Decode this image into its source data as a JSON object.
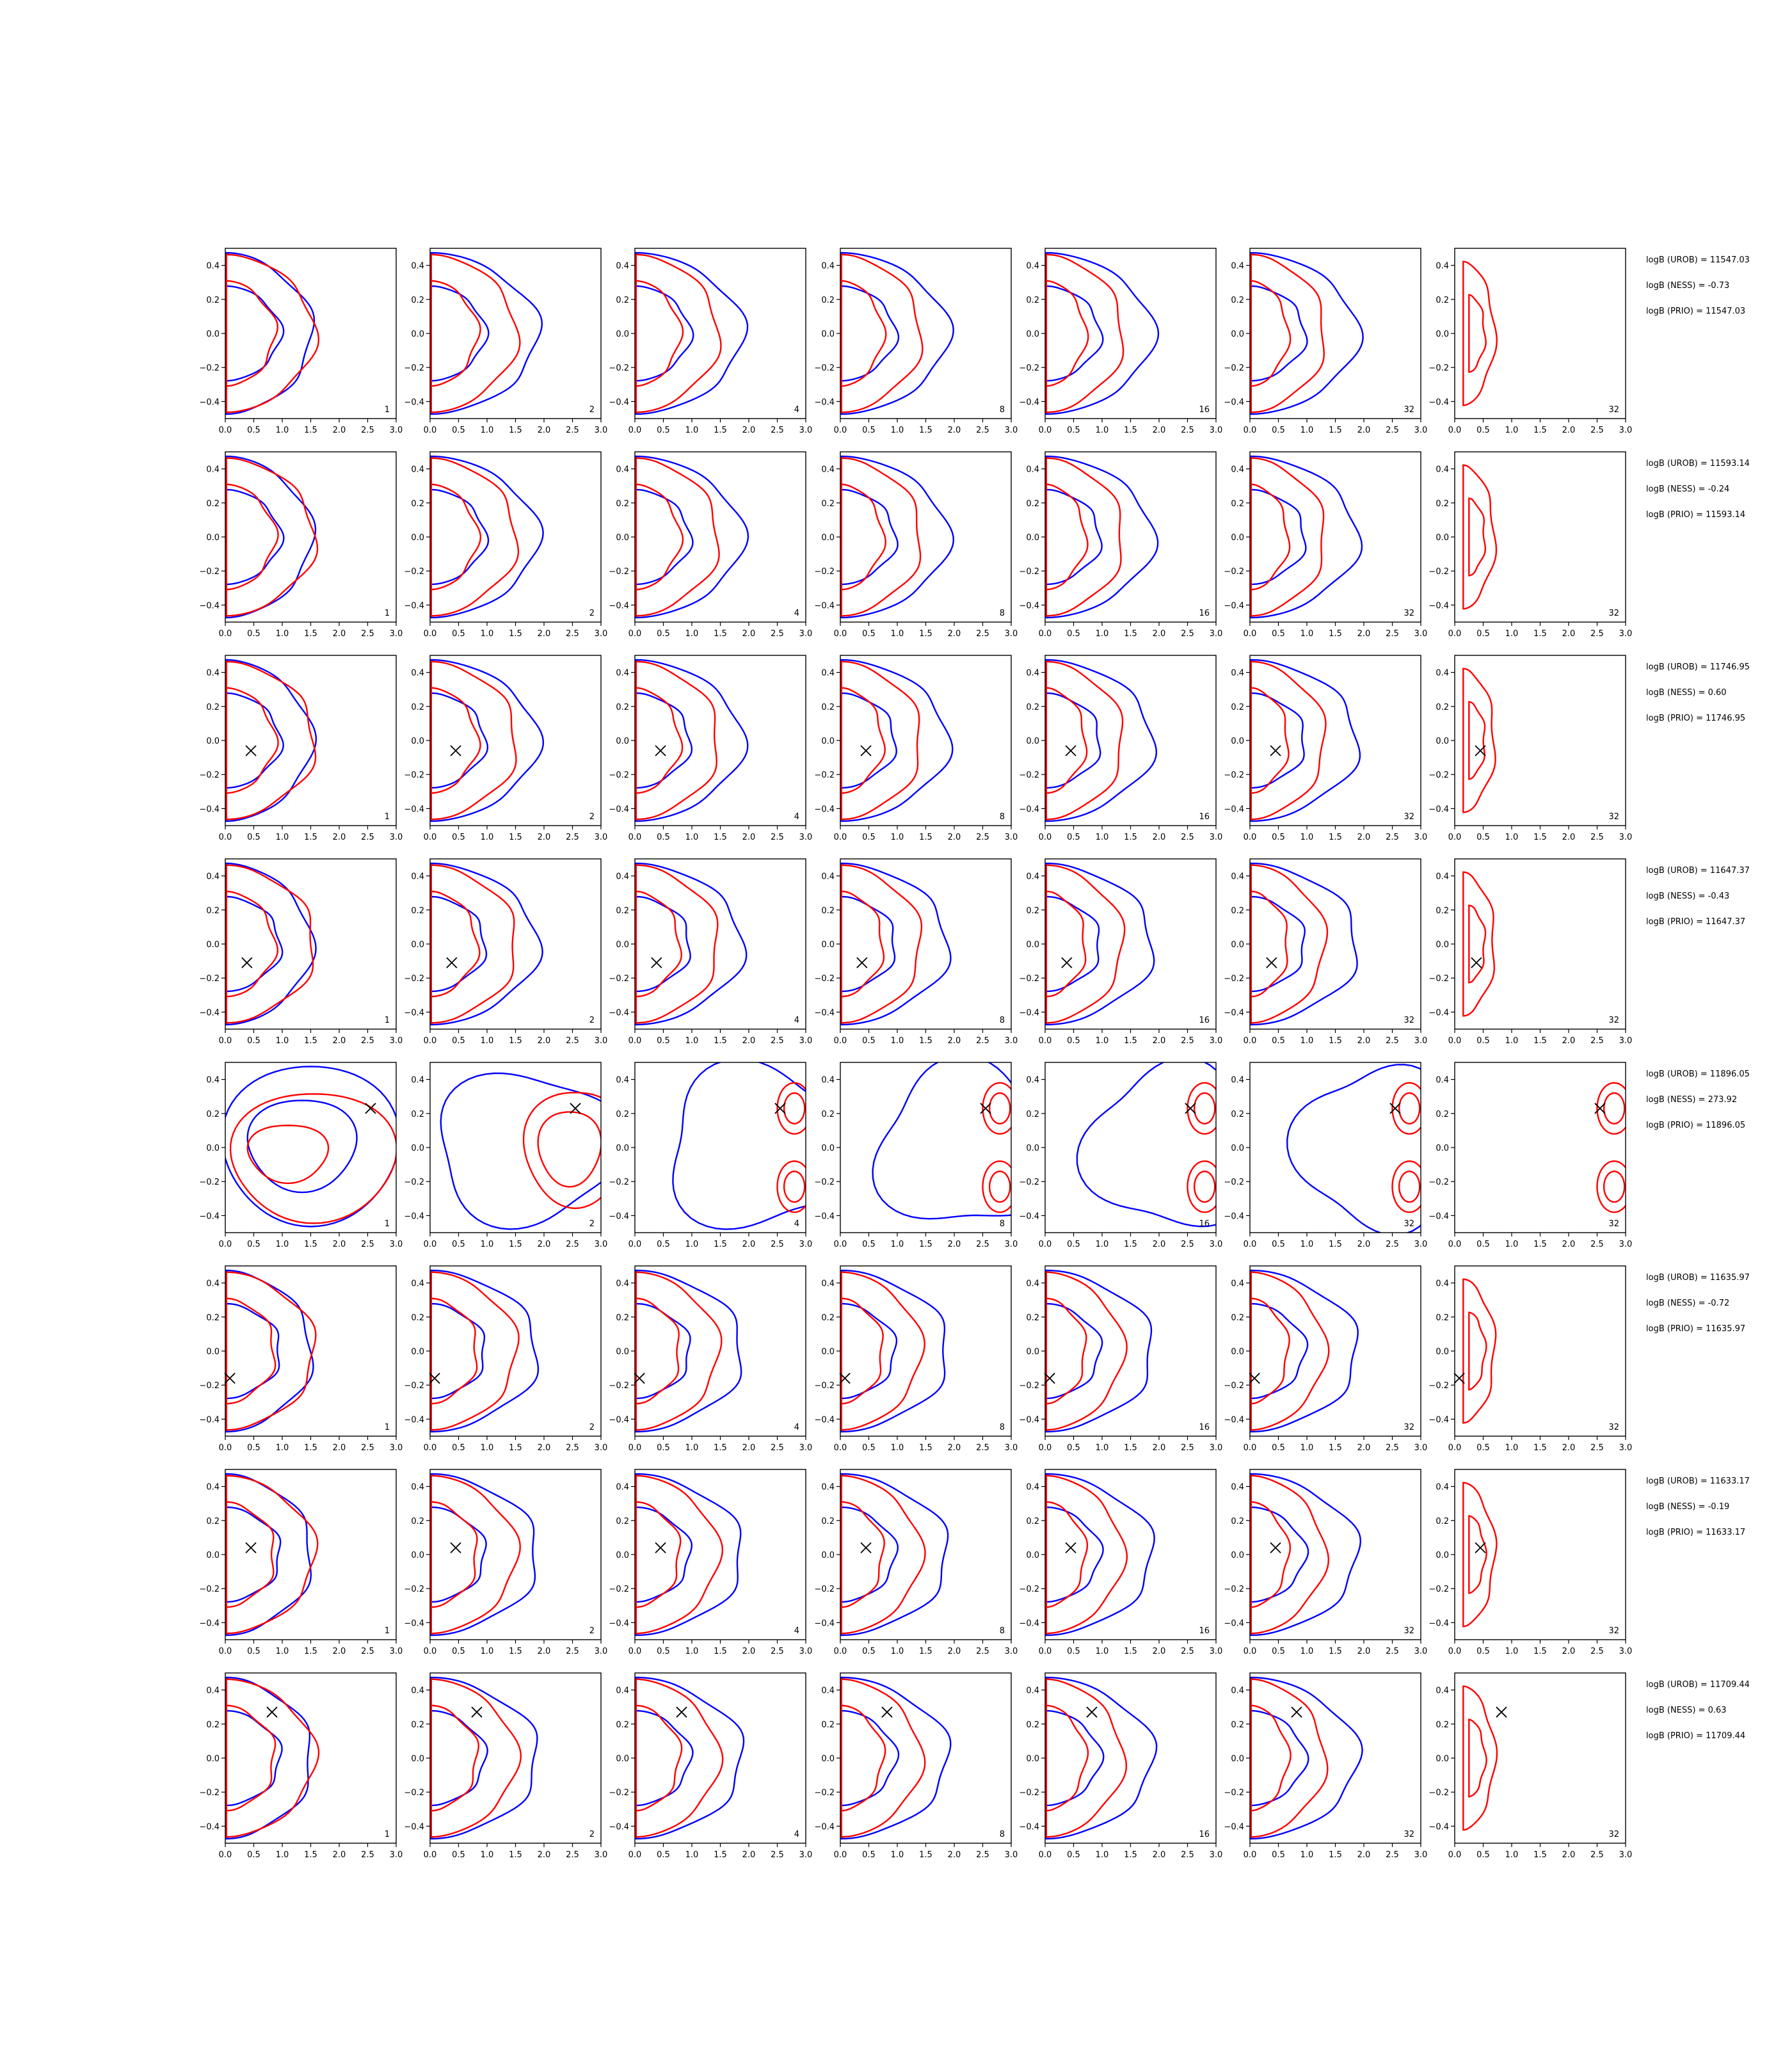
{
  "figure": {
    "columns": [
      "1",
      "2",
      "4",
      "8",
      "16",
      "32",
      "32"
    ],
    "axes": {
      "xlim": [
        0.0,
        3.0
      ],
      "ylim": [
        -0.5,
        0.5
      ],
      "x_ticks": [
        "0.0",
        "0.5",
        "1.0",
        "1.5",
        "2.0",
        "2.5",
        "3.0"
      ],
      "y_ticks": [
        "0.4",
        "0.2",
        "0.0",
        "−0.2",
        "−0.4"
      ],
      "grid": false
    },
    "colors": {
      "blue": "#0000ff",
      "red": "#ff0000",
      "marker": "#000000"
    }
  },
  "chart_data": [
    {
      "row": 1,
      "type": "contour",
      "logB_UROB": "logB (UROB) = 11547.03",
      "logB_NESS": "logB (NESS) = -0.73",
      "logB_PRIO": "logB (PRIO) = 11547.03",
      "marker": null,
      "shape": "d-shape"
    },
    {
      "row": 2,
      "type": "contour",
      "logB_UROB": "logB (UROB) = 11593.14",
      "logB_NESS": "logB (NESS) = -0.24",
      "logB_PRIO": "logB (PRIO) = 11593.14",
      "marker": null,
      "shape": "d-shape"
    },
    {
      "row": 3,
      "type": "contour",
      "logB_UROB": "logB (UROB) = 11746.95",
      "logB_NESS": "logB (NESS) = 0.60",
      "logB_PRIO": "logB (PRIO) = 11746.95",
      "marker": [
        0.45,
        -0.06
      ],
      "shape": "d-shape"
    },
    {
      "row": 4,
      "type": "contour",
      "logB_UROB": "logB (UROB) = 11647.37",
      "logB_NESS": "logB (NESS) = -0.43",
      "logB_PRIO": "logB (PRIO) = 11647.37",
      "marker": [
        0.38,
        -0.11
      ],
      "shape": "d-shape"
    },
    {
      "row": 5,
      "type": "contour",
      "logB_UROB": "logB (UROB) = 11896.05",
      "logB_NESS": "logB (NESS) = 273.92",
      "logB_PRIO": "logB (PRIO) = 11896.05",
      "marker": [
        2.55,
        0.23
      ],
      "shape": "spread"
    },
    {
      "row": 6,
      "type": "contour",
      "logB_UROB": "logB (UROB) = 11635.97",
      "logB_NESS": "logB (NESS) = -0.72",
      "logB_PRIO": "logB (PRIO) = 11635.97",
      "marker": [
        0.08,
        -0.16
      ],
      "shape": "d-shape"
    },
    {
      "row": 7,
      "type": "contour",
      "logB_UROB": "logB (UROB) = 11633.17",
      "logB_NESS": "logB (NESS) = -0.19",
      "logB_PRIO": "logB (PRIO) = 11633.17",
      "marker": [
        0.45,
        0.04
      ],
      "shape": "d-shape"
    },
    {
      "row": 8,
      "type": "contour",
      "logB_UROB": "logB (UROB) = 11709.44",
      "logB_NESS": "logB (NESS) = 0.63",
      "logB_PRIO": "logB (PRIO) = 11709.44",
      "marker": [
        0.82,
        0.27
      ],
      "shape": "d-shape"
    }
  ]
}
